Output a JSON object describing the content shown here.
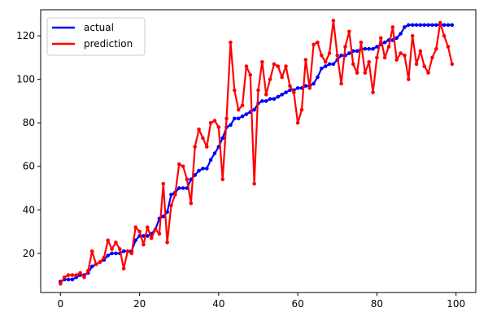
{
  "chart_data": {
    "type": "line",
    "title": "",
    "xlabel": "",
    "ylabel": "",
    "xlim": [
      -5,
      105
    ],
    "ylim": [
      2,
      132
    ],
    "xticks": [
      0,
      20,
      40,
      60,
      80,
      100
    ],
    "yticks": [
      20,
      40,
      60,
      80,
      100,
      120
    ],
    "grid": false,
    "legend_position": "upper-left",
    "x": [
      0,
      1,
      2,
      3,
      4,
      5,
      6,
      7,
      8,
      9,
      10,
      11,
      12,
      13,
      14,
      15,
      16,
      17,
      18,
      19,
      20,
      21,
      22,
      23,
      24,
      25,
      26,
      27,
      28,
      29,
      30,
      31,
      32,
      33,
      34,
      35,
      36,
      37,
      38,
      39,
      40,
      41,
      42,
      43,
      44,
      45,
      46,
      47,
      48,
      49,
      50,
      51,
      52,
      53,
      54,
      55,
      56,
      57,
      58,
      59,
      60,
      61,
      62,
      63,
      64,
      65,
      66,
      67,
      68,
      69,
      70,
      71,
      72,
      73,
      74,
      75,
      76,
      77,
      78,
      79,
      80,
      81,
      82,
      83,
      84,
      85,
      86,
      87,
      88,
      89,
      90,
      91,
      92,
      93,
      94,
      95,
      96,
      97,
      98,
      99
    ],
    "series": [
      {
        "name": "actual",
        "color": "#0000ff",
        "values": [
          7,
          8,
          8,
          8,
          9,
          10,
          10,
          11,
          14,
          15,
          16,
          17,
          19,
          20,
          20,
          20,
          21,
          21,
          21,
          26,
          28,
          28,
          28,
          29,
          31,
          36,
          37,
          39,
          47,
          48,
          50,
          50,
          50,
          54,
          56,
          58,
          59,
          59,
          63,
          66,
          69,
          73,
          78,
          79,
          82,
          82,
          83,
          84,
          85,
          86,
          89,
          90,
          90,
          91,
          91,
          92,
          93,
          94,
          95,
          95,
          96,
          96,
          97,
          97,
          98,
          101,
          105,
          106,
          107,
          107,
          109,
          111,
          111,
          112,
          113,
          113,
          114,
          114,
          114,
          114,
          115,
          116,
          117,
          118,
          118,
          119,
          121,
          124,
          125,
          125,
          125,
          125,
          125,
          125,
          125,
          125,
          125,
          125,
          125,
          125
        ]
      },
      {
        "name": "prediction",
        "color": "#ff0000",
        "values": [
          6,
          9,
          10,
          10,
          10,
          11,
          9,
          12,
          21,
          15,
          16,
          18,
          26,
          22,
          25,
          22,
          13,
          21,
          20,
          32,
          30,
          24,
          32,
          27,
          31,
          29,
          52,
          25,
          42,
          47,
          61,
          60,
          54,
          43,
          69,
          77,
          73,
          69,
          80,
          81,
          78,
          54,
          82,
          117,
          95,
          86,
          88,
          106,
          102,
          52,
          95,
          108,
          93,
          100,
          107,
          106,
          101,
          106,
          97,
          94,
          80,
          86,
          109,
          96,
          116,
          117,
          111,
          108,
          112,
          127,
          111,
          98,
          115,
          122,
          107,
          103,
          117,
          103,
          108,
          94,
          110,
          119,
          110,
          115,
          124,
          109,
          112,
          111,
          100,
          120,
          107,
          113,
          106,
          103,
          110,
          114,
          126,
          120,
          115,
          107
        ]
      }
    ]
  }
}
